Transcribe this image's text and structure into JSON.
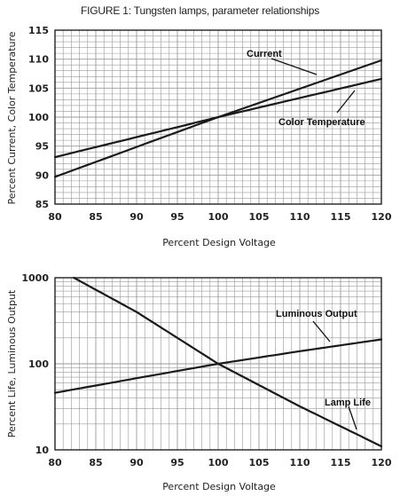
{
  "figure_title": "FIGURE 1: Tungsten lamps, parameter relationships",
  "colors": {
    "line": "#1a1a1a",
    "grid": "#9a9a9a",
    "frame": "#222222",
    "background": "#ffffff"
  },
  "chart_data": [
    {
      "type": "line",
      "title": "",
      "xlabel": "Percent Design Voltage",
      "ylabel": "Percent Current, Color Temperature",
      "xlim": [
        80,
        120
      ],
      "ylim": [
        85,
        115
      ],
      "y_scale": "linear",
      "grid": true,
      "x_ticks": [
        80,
        85,
        90,
        95,
        100,
        105,
        110,
        115,
        120
      ],
      "y_ticks": [
        85,
        90,
        95,
        100,
        105,
        110,
        115
      ],
      "series": [
        {
          "name": "Current",
          "x": [
            80,
            100,
            120
          ],
          "y": [
            89.7,
            100,
            109.8
          ]
        },
        {
          "name": "Color Temperature",
          "x": [
            80,
            100,
            120
          ],
          "y": [
            93.1,
            100,
            106.6
          ]
        }
      ],
      "annotations": [
        "Current",
        "Color Temperature"
      ]
    },
    {
      "type": "line",
      "title": "",
      "xlabel": "Percent Design Voltage",
      "ylabel": "Percent Life, Luminous Output",
      "xlim": [
        80,
        120
      ],
      "ylim": [
        10,
        1000
      ],
      "y_scale": "log",
      "grid": true,
      "x_ticks": [
        80,
        85,
        90,
        95,
        100,
        105,
        110,
        115,
        120
      ],
      "y_ticks": [
        10,
        100,
        1000
      ],
      "series": [
        {
          "name": "Luminous Output",
          "x": [
            80,
            90,
            100,
            110,
            120
          ],
          "y": [
            46,
            68,
            100,
            140,
            192
          ]
        },
        {
          "name": "Lamp Life",
          "x": [
            82.3,
            90,
            100,
            110,
            120
          ],
          "y": [
            1000,
            400,
            100,
            32,
            11
          ]
        }
      ],
      "annotations": [
        "Luminous Output",
        "Lamp Life"
      ]
    }
  ]
}
